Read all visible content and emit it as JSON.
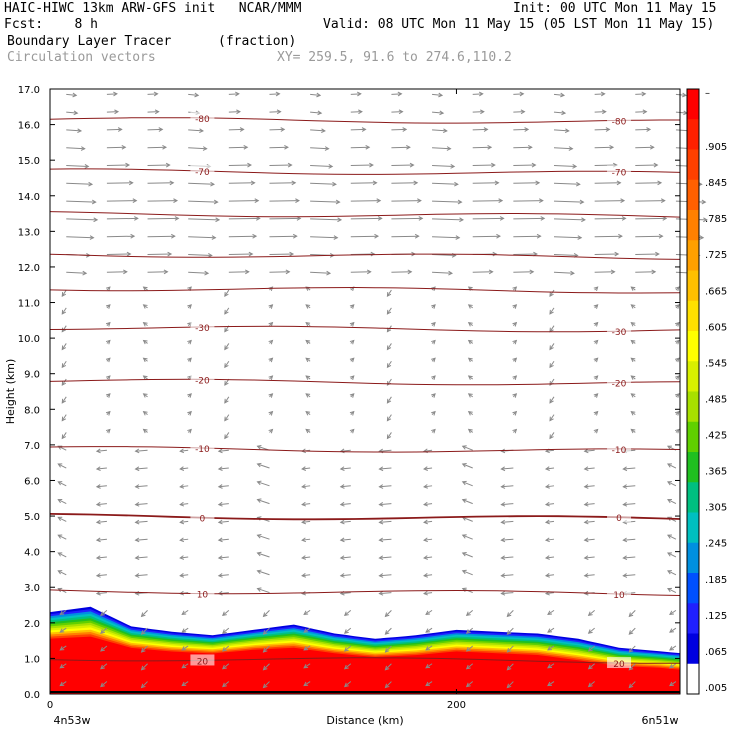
{
  "header": {
    "line1_left": "HAIC-HIWC 13km ARW-GFS init   NCAR/MMM",
    "line1_right": "Init: 00 UTC Mon 11 May 15",
    "line2_left": "Fcst:    8 h",
    "line2_right": "Valid: 08 UTC Mon 11 May 15 (05 LST Mon 11 May 15)",
    "line3_left": "Boundary Layer Tracer",
    "line3_units": "(fraction)",
    "line4_left": "Circulation vectors",
    "line4_xy": "XY= 259.5, 91.6 to 274.6,110.2"
  },
  "chart_data": {
    "type": "heatmap",
    "xlabel": "Distance (km)",
    "ylabel": "Height (km)",
    "xlim": [
      0,
      310
    ],
    "ylim": [
      0,
      17
    ],
    "x_ticks": [
      "0",
      "200"
    ],
    "x_tick_values": [
      0,
      200
    ],
    "x_end_labels": {
      "left": "4n53w",
      "right": "6n51w"
    },
    "y_ticks": [
      "0.0",
      "1.0",
      "2.0",
      "3.0",
      "4.0",
      "5.0",
      "6.0",
      "7.0",
      "8.0",
      "9.0",
      "10.0",
      "11.0",
      "12.0",
      "13.0",
      "14.0",
      "15.0",
      "16.0",
      "17.0"
    ],
    "colorbar": {
      "labels": [
        "–",
        ".905",
        ".845",
        ".785",
        ".725",
        ".665",
        ".605",
        ".545",
        ".485",
        ".425",
        ".365",
        ".305",
        ".245",
        ".185",
        ".125",
        ".065",
        ".005"
      ],
      "colors": [
        "#ff0000",
        "#ff2000",
        "#ff4000",
        "#ff6000",
        "#ff8000",
        "#ffa000",
        "#ffc000",
        "#ffe000",
        "#ffff00",
        "#d8f000",
        "#a8e000",
        "#60d000",
        "#20c020",
        "#00c080",
        "#00c0c0",
        "#0090e0",
        "#0050ff",
        "#2020ff",
        "#0000e0",
        "#ffffff"
      ]
    },
    "temperature_contours_c": [
      {
        "value": -80,
        "height_km": 16.15,
        "label": "-80"
      },
      {
        "value": -70,
        "height_km": 14.7,
        "label": "-70"
      },
      {
        "value": -60,
        "height_km": 13.5
      },
      {
        "value": -50,
        "height_km": 12.35
      },
      {
        "value": -40,
        "height_km": 11.4
      },
      {
        "value": -30,
        "height_km": 10.3,
        "label": "-30"
      },
      {
        "value": -20,
        "height_km": 8.8,
        "label": "-20"
      },
      {
        "value": -10,
        "height_km": 6.9,
        "label": "-10"
      },
      {
        "value": 0,
        "height_km": 5.0,
        "label": "0"
      },
      {
        "value": 10,
        "height_km": 2.9,
        "label": "10"
      },
      {
        "value": 20,
        "height_km": 1.0,
        "label": "20"
      }
    ],
    "tracer_top_km": {
      "x": [
        0,
        20,
        40,
        60,
        80,
        100,
        120,
        140,
        160,
        180,
        200,
        220,
        240,
        260,
        280,
        300,
        310
      ],
      "y": [
        2.3,
        2.45,
        1.9,
        1.75,
        1.65,
        1.8,
        1.95,
        1.7,
        1.55,
        1.65,
        1.8,
        1.75,
        1.7,
        1.55,
        1.3,
        1.2,
        1.15
      ]
    },
    "tracer_full_km": {
      "x": [
        0,
        20,
        40,
        60,
        80,
        100,
        120,
        140,
        160,
        180,
        200,
        220,
        240,
        260,
        280,
        300,
        310
      ],
      "y": [
        1.5,
        1.55,
        1.25,
        1.15,
        1.1,
        1.2,
        1.25,
        1.1,
        1.0,
        1.05,
        1.15,
        1.1,
        1.05,
        0.9,
        0.75,
        0.7,
        0.65
      ]
    }
  }
}
